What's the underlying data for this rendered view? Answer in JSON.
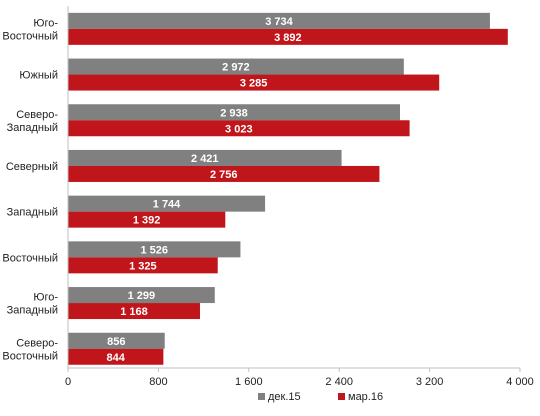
{
  "chart_data": {
    "type": "bar",
    "orientation": "horizontal",
    "categories": [
      "Юго-\nВосточный",
      "Южный",
      "Северо-\nЗападный",
      "Северный",
      "Западный",
      "Восточный",
      "Юго-\nЗападный",
      "Северо-\nВосточный"
    ],
    "series": [
      {
        "name": "дек.15",
        "color": "#808080",
        "values": [
          3734,
          2972,
          2938,
          2421,
          1744,
          1526,
          1299,
          856
        ],
        "labels": [
          "3 734",
          "2 972",
          "2 938",
          "2 421",
          "1 744",
          "1 526",
          "1 299",
          "856"
        ]
      },
      {
        "name": "мар.16",
        "color": "#c0151b",
        "values": [
          3892,
          3285,
          3023,
          2756,
          1392,
          1325,
          1168,
          844
        ],
        "labels": [
          "3 892",
          "3 285",
          "3 023",
          "2 756",
          "1 392",
          "1 325",
          "1 168",
          "844"
        ]
      }
    ],
    "xlim": [
      0,
      4000
    ],
    "xticks": [
      0,
      800,
      1600,
      2400,
      3200,
      4000
    ],
    "xtick_labels": [
      "0",
      "800",
      "1 600",
      "2 400",
      "3 200",
      "4 000"
    ],
    "grid": false,
    "legend_position": "bottom-right"
  }
}
